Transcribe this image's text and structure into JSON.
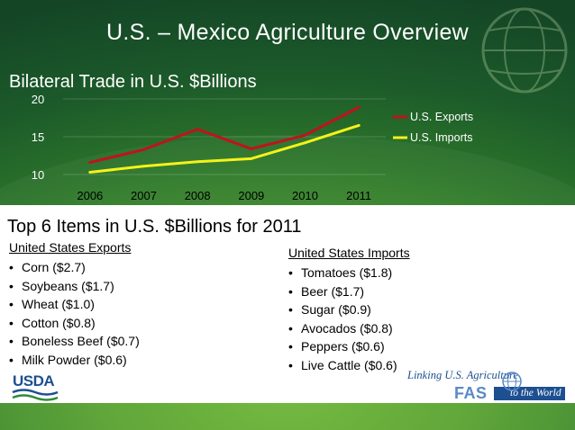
{
  "slide": {
    "title": "U.S. – Mexico Agriculture Overview",
    "chart_title": "Bilateral Trade in U.S. $Billions",
    "section_title": "Top 6  Items in U.S. $Billions for 2011"
  },
  "exports": {
    "heading": "United States Exports",
    "items": [
      "Corn ($2.7)",
      "Soybeans ($1.7)",
      "Wheat ($1.0)",
      "Cotton ($0.8)",
      "Boneless Beef ($0.7)",
      "Milk Powder ($0.6)"
    ]
  },
  "imports": {
    "heading": "United States Imports",
    "items": [
      "Tomatoes ($1.8)",
      "Beer ($1.7)",
      "Sugar ($0.9)",
      "Avocados ($0.8)",
      "Peppers ($0.6)",
      "Live Cattle ($0.6)"
    ]
  },
  "logos": {
    "usda": "USDA",
    "fas_tagline": "Linking U.S. Agriculture",
    "fas_abbr": "FAS",
    "fas_to": "to the",
    "fas_world": "World"
  },
  "bullet": "•",
  "colors": {
    "exports": "#c0131b",
    "imports": "#f5f21a",
    "background": "#1e5e2b",
    "text_light": "#ffffff"
  },
  "chart_data": {
    "type": "line",
    "title": "Bilateral Trade in U.S. $Billions",
    "x": [
      "2006",
      "2007",
      "2008",
      "2009",
      "2010",
      "2011"
    ],
    "ylim": [
      10,
      20
    ],
    "yticks": [
      "10",
      "15",
      "20"
    ],
    "grid": true,
    "legend_position": "right",
    "series": [
      {
        "name": "U.S. Exports",
        "color": "#c0131b",
        "values": [
          11.6,
          13.3,
          16.0,
          13.4,
          15.2,
          18.9
        ]
      },
      {
        "name": "U.S. Imports",
        "color": "#f5f21a",
        "values": [
          10.3,
          11.1,
          11.7,
          12.1,
          14.2,
          16.5
        ]
      }
    ]
  }
}
